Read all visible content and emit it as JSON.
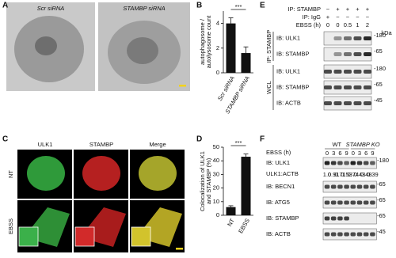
{
  "panels": {
    "A": {
      "label": "A",
      "conditions": [
        "Scr siRNA",
        "STAMBP siRNA"
      ]
    },
    "B": {
      "label": "B"
    },
    "C": {
      "label": "C",
      "channels": [
        "ULK1",
        "STAMBP",
        "Merge"
      ],
      "rows": [
        "NT",
        "EBSS"
      ]
    },
    "D": {
      "label": "D"
    },
    "E": {
      "label": "E",
      "header_rows": [
        {
          "label": "IP: STAMBP",
          "lanes": [
            "−",
            "+",
            "+",
            "+",
            "+"
          ]
        },
        {
          "label": "IP: IgG",
          "lanes": [
            "+",
            "−",
            "−",
            "−",
            "−"
          ]
        },
        {
          "label": "EBSS (h)",
          "lanes": [
            "0",
            "0",
            "0.5",
            "1",
            "2"
          ]
        }
      ],
      "kda": "kDa",
      "groups": [
        {
          "label": "IP: STAMBP",
          "rows": [
            {
              "label": "IB: ULK1",
              "marker": "-180"
            },
            {
              "label": "IB: STAMBP",
              "marker": "-65"
            }
          ]
        },
        {
          "label": "WCL",
          "rows": [
            {
              "label": "IB: ULK1",
              "marker": "-180"
            },
            {
              "label": "IB: STAMBP",
              "marker": "-65"
            },
            {
              "label": "IB: ACTB",
              "marker": "-45"
            }
          ]
        }
      ]
    },
    "F": {
      "label": "F",
      "condition_label": "EBSS (h)",
      "groups": [
        {
          "label": "WT",
          "times": [
            "0",
            "3",
            "6",
            "9"
          ]
        },
        {
          "label": "STAMBP KO",
          "times": [
            "0",
            "3",
            "6",
            "9"
          ]
        }
      ],
      "rows": [
        {
          "label": "IB: ULK1",
          "marker": "-180"
        },
        {
          "label": "IB: BECN1",
          "marker": "-65"
        },
        {
          "label": "IB: ATG5",
          "marker": "-65"
        },
        {
          "label": "IB: STAMBP",
          "marker": "-65"
        },
        {
          "label": "IB: ACTB",
          "marker": "-45"
        }
      ],
      "ratio": {
        "label": "ULK1:ACTB",
        "values": [
          "1.0",
          "0.91",
          "0.71",
          "0.53",
          "0.74",
          "0.43",
          "0.48",
          "0.39"
        ]
      }
    }
  },
  "chart_data": [
    {
      "type": "bar",
      "ylabel": [
        "autophagosome /",
        "autolysosome count"
      ],
      "categories": [
        "Scr siRNA",
        "STAMBP siRNA"
      ],
      "values": [
        4.0,
        1.6
      ],
      "errors": [
        0.45,
        0.5
      ],
      "ylim": [
        0,
        5
      ],
      "yticks": [
        0,
        2,
        4
      ],
      "color": "#111111",
      "annotation": "***"
    },
    {
      "type": "bar",
      "ylabel": [
        "Colocalization of ULK1",
        "and STAMBP (%)"
      ],
      "categories": [
        "NT",
        "EBSS"
      ],
      "values": [
        6,
        43
      ],
      "errors": [
        1,
        2
      ],
      "ylim": [
        0,
        50
      ],
      "yticks": [
        0,
        10,
        20,
        30,
        40,
        50
      ],
      "color": "#111111",
      "annotation": "***"
    }
  ]
}
